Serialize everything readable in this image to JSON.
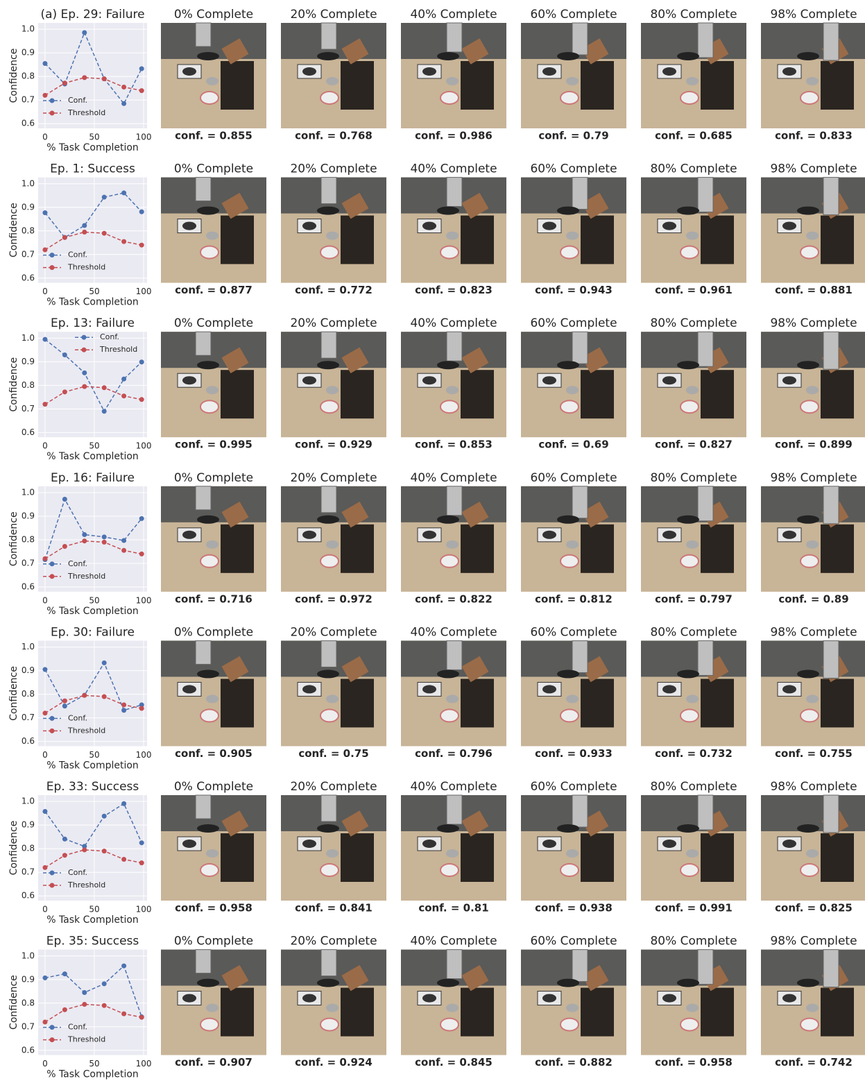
{
  "chart_data": [
    {
      "type": "line",
      "title": "(a) Ep. 29: Failure",
      "xlabel": "% Task Completion",
      "ylabel": "Confidence",
      "x": [
        0,
        20,
        40,
        60,
        80,
        98
      ],
      "xlim": [
        -7,
        103.5
      ],
      "xticks": [
        0,
        50,
        100
      ],
      "ylim": [
        0.58,
        1.027
      ],
      "yticks": [
        0.6,
        0.7,
        0.8,
        0.9,
        {
          "value": 1,
          "label": "1.0"
        }
      ],
      "grid": true,
      "legend": "lower left",
      "panel_titles": [
        "0% Complete",
        "20% Complete",
        "40% Complete",
        "60% Complete",
        "80% Complete",
        "98% Complete"
      ],
      "series": [
        {
          "name": "Conf.",
          "color": "#4c72b0",
          "values": [
            0.855,
            0.768,
            0.986,
            0.79,
            0.685,
            0.833
          ],
          "value_labels": [
            "conf. = 0.855",
            "conf. = 0.768",
            "conf. = 0.986",
            "conf. = 0.79",
            "conf. = 0.685",
            "conf. = 0.833"
          ]
        },
        {
          "name": "Threshold",
          "color": "#c44e52",
          "values": [
            0.72,
            0.772,
            0.795,
            0.79,
            0.755,
            0.74
          ]
        }
      ]
    },
    {
      "type": "line",
      "title": "Ep. 1: Success",
      "xlabel": "% Task Completion",
      "ylabel": "Confidence",
      "x": [
        0,
        20,
        40,
        60,
        80,
        98
      ],
      "xlim": [
        -7,
        103.5
      ],
      "xticks": [
        0,
        50,
        100
      ],
      "ylim": [
        0.58,
        1.027
      ],
      "yticks": [
        0.6,
        0.7,
        0.8,
        0.9,
        {
          "value": 1,
          "label": "1.0"
        }
      ],
      "grid": true,
      "legend": "lower left",
      "panel_titles": [
        "0% Complete",
        "20% Complete",
        "40% Complete",
        "60% Complete",
        "80% Complete",
        "98% Complete"
      ],
      "series": [
        {
          "name": "Conf.",
          "color": "#4c72b0",
          "values": [
            0.877,
            0.772,
            0.823,
            0.943,
            0.961,
            0.881
          ],
          "value_labels": [
            "conf. = 0.877",
            "conf. = 0.772",
            "conf. = 0.823",
            "conf. = 0.943",
            "conf. = 0.961",
            "conf. = 0.881"
          ]
        },
        {
          "name": "Threshold",
          "color": "#c44e52",
          "values": [
            0.72,
            0.772,
            0.795,
            0.79,
            0.755,
            0.74
          ]
        }
      ]
    },
    {
      "type": "line",
      "title": "Ep. 13: Failure",
      "xlabel": "% Task Completion",
      "ylabel": "Confidence",
      "x": [
        0,
        20,
        40,
        60,
        80,
        98
      ],
      "xlim": [
        -7,
        103.5
      ],
      "xticks": [
        0,
        50,
        100
      ],
      "ylim": [
        0.58,
        1.027
      ],
      "yticks": [
        0.6,
        0.7,
        0.8,
        0.9,
        {
          "value": 1,
          "label": "1.0"
        }
      ],
      "grid": true,
      "legend": "upper right",
      "panel_titles": [
        "0% Complete",
        "20% Complete",
        "40% Complete",
        "60% Complete",
        "80% Complete",
        "98% Complete"
      ],
      "series": [
        {
          "name": "Conf.",
          "color": "#4c72b0",
          "values": [
            0.995,
            0.929,
            0.853,
            0.69,
            0.827,
            0.899
          ],
          "value_labels": [
            "conf. = 0.995",
            "conf. = 0.929",
            "conf. = 0.853",
            "conf. = 0.69",
            "conf. = 0.827",
            "conf. = 0.899"
          ]
        },
        {
          "name": "Threshold",
          "color": "#c44e52",
          "values": [
            0.72,
            0.772,
            0.795,
            0.79,
            0.755,
            0.74
          ]
        }
      ]
    },
    {
      "type": "line",
      "title": "Ep. 16: Failure",
      "xlabel": "% Task Completion",
      "ylabel": "Confidence",
      "x": [
        0,
        20,
        40,
        60,
        80,
        98
      ],
      "xlim": [
        -7,
        103.5
      ],
      "xticks": [
        0,
        50,
        100
      ],
      "ylim": [
        0.58,
        1.027
      ],
      "yticks": [
        0.6,
        0.7,
        0.8,
        0.9,
        {
          "value": 1,
          "label": "1.0"
        }
      ],
      "grid": true,
      "legend": "lower left",
      "panel_titles": [
        "0% Complete",
        "20% Complete",
        "40% Complete",
        "60% Complete",
        "80% Complete",
        "98% Complete"
      ],
      "series": [
        {
          "name": "Conf.",
          "color": "#4c72b0",
          "values": [
            0.716,
            0.972,
            0.822,
            0.812,
            0.797,
            0.89
          ],
          "value_labels": [
            "conf. = 0.716",
            "conf. = 0.972",
            "conf. = 0.822",
            "conf. = 0.812",
            "conf. = 0.797",
            "conf. = 0.89"
          ]
        },
        {
          "name": "Threshold",
          "color": "#c44e52",
          "values": [
            0.72,
            0.772,
            0.795,
            0.79,
            0.755,
            0.74
          ]
        }
      ]
    },
    {
      "type": "line",
      "title": "Ep. 30: Failure",
      "xlabel": "% Task Completion",
      "ylabel": "Confidence",
      "x": [
        0,
        20,
        40,
        60,
        80,
        98
      ],
      "xlim": [
        -7,
        103.5
      ],
      "xticks": [
        0,
        50,
        100
      ],
      "ylim": [
        0.58,
        1.027
      ],
      "yticks": [
        0.6,
        0.7,
        0.8,
        0.9,
        {
          "value": 1,
          "label": "1.0"
        }
      ],
      "grid": true,
      "legend": "lower left",
      "panel_titles": [
        "0% Complete",
        "20% Complete",
        "40% Complete",
        "60% Complete",
        "80% Complete",
        "98% Complete"
      ],
      "series": [
        {
          "name": "Conf.",
          "color": "#4c72b0",
          "values": [
            0.905,
            0.75,
            0.796,
            0.933,
            0.732,
            0.755
          ],
          "value_labels": [
            "conf. = 0.905",
            "conf. = 0.75",
            "conf. = 0.796",
            "conf. = 0.933",
            "conf. = 0.732",
            "conf. = 0.755"
          ]
        },
        {
          "name": "Threshold",
          "color": "#c44e52",
          "values": [
            0.72,
            0.772,
            0.795,
            0.79,
            0.755,
            0.74
          ]
        }
      ]
    },
    {
      "type": "line",
      "title": "Ep. 33: Success",
      "xlabel": "% Task Completion",
      "ylabel": "Confidence",
      "x": [
        0,
        20,
        40,
        60,
        80,
        98
      ],
      "xlim": [
        -7,
        103.5
      ],
      "xticks": [
        0,
        50,
        100
      ],
      "ylim": [
        0.58,
        1.027
      ],
      "yticks": [
        0.6,
        0.7,
        0.8,
        0.9,
        {
          "value": 1,
          "label": "1.0"
        }
      ],
      "grid": true,
      "legend": "lower left",
      "panel_titles": [
        "0% Complete",
        "20% Complete",
        "40% Complete",
        "60% Complete",
        "80% Complete",
        "98% Complete"
      ],
      "series": [
        {
          "name": "Conf.",
          "color": "#4c72b0",
          "values": [
            0.958,
            0.841,
            0.81,
            0.938,
            0.991,
            0.825
          ],
          "value_labels": [
            "conf. = 0.958",
            "conf. = 0.841",
            "conf. = 0.81",
            "conf. = 0.938",
            "conf. = 0.991",
            "conf. = 0.825"
          ]
        },
        {
          "name": "Threshold",
          "color": "#c44e52",
          "values": [
            0.72,
            0.772,
            0.795,
            0.79,
            0.755,
            0.74
          ]
        }
      ]
    },
    {
      "type": "line",
      "title": "Ep. 35: Success",
      "xlabel": "% Task Completion",
      "ylabel": "Confidence",
      "x": [
        0,
        20,
        40,
        60,
        80,
        98
      ],
      "xlim": [
        -7,
        103.5
      ],
      "xticks": [
        0,
        50,
        100
      ],
      "ylim": [
        0.58,
        1.027
      ],
      "yticks": [
        0.6,
        0.7,
        0.8,
        0.9,
        {
          "value": 1,
          "label": "1.0"
        }
      ],
      "grid": true,
      "legend": "lower left",
      "panel_titles": [
        "0% Complete",
        "20% Complete",
        "40% Complete",
        "60% Complete",
        "80% Complete",
        "98% Complete"
      ],
      "series": [
        {
          "name": "Conf.",
          "color": "#4c72b0",
          "values": [
            0.907,
            0.924,
            0.845,
            0.882,
            0.958,
            0.742
          ],
          "value_labels": [
            "conf. = 0.907",
            "conf. = 0.924",
            "conf. = 0.845",
            "conf. = 0.882",
            "conf. = 0.958",
            "conf. = 0.742"
          ]
        },
        {
          "name": "Threshold",
          "color": "#c44e52",
          "values": [
            0.72,
            0.772,
            0.795,
            0.79,
            0.755,
            0.74
          ]
        }
      ]
    }
  ]
}
